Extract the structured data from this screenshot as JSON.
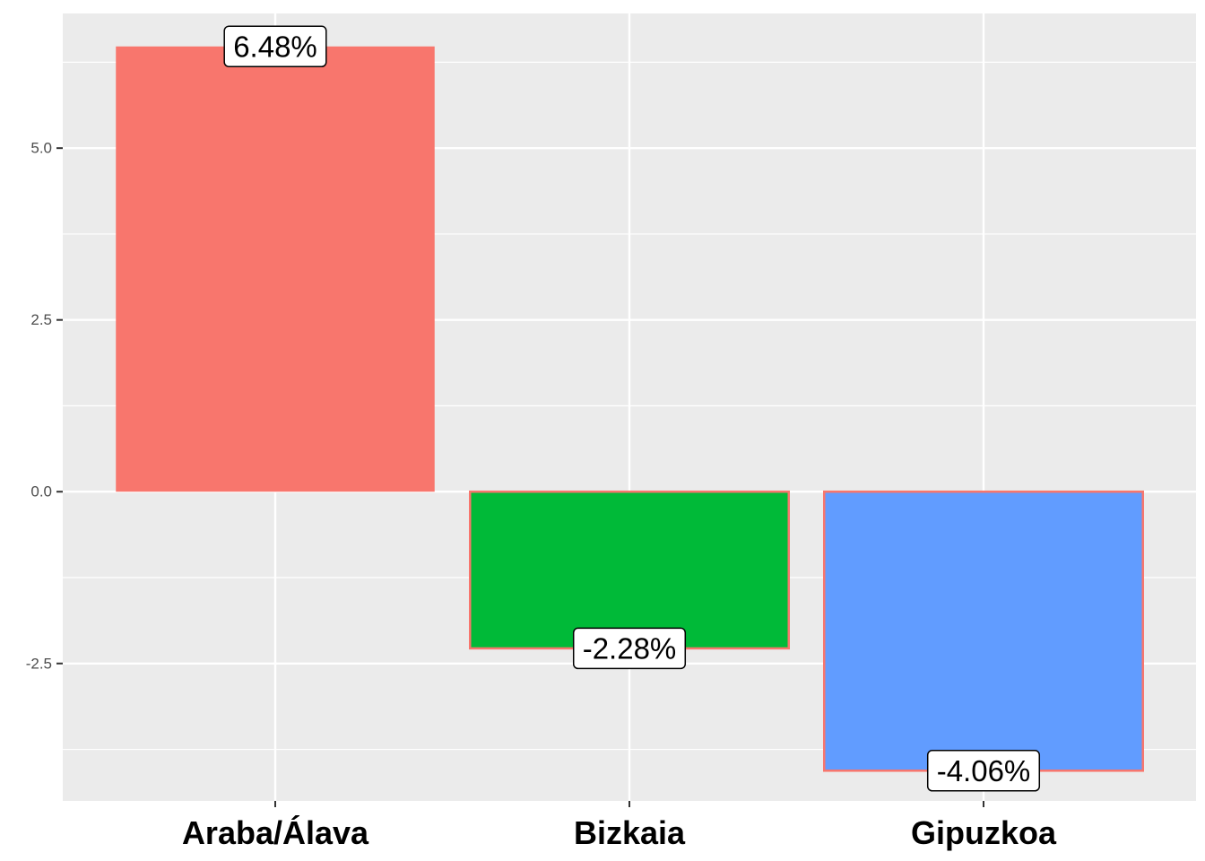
{
  "chart_data": {
    "type": "bar",
    "title": "",
    "xlabel": "",
    "ylabel": "",
    "categories": [
      "Araba/Álava",
      "Bizkaia",
      "Gipuzkoa"
    ],
    "values": [
      6.48,
      -2.28,
      -4.06
    ],
    "data_labels": [
      "6.48%",
      "-2.28%",
      "-4.06%"
    ],
    "colors": [
      "#F8766D",
      "#00BA38",
      "#619CFF"
    ],
    "outline_color": "#F8766D",
    "yticks": [
      -2.5,
      0.0,
      2.5,
      5.0
    ],
    "ytick_labels": [
      "-2.5",
      "0.0",
      "2.5",
      "5.0"
    ],
    "ylim": [
      -4.5,
      6.96
    ],
    "panel_background": "#EBEBEB",
    "grid_color": "#FFFFFF",
    "grid": true,
    "legend": "none"
  }
}
